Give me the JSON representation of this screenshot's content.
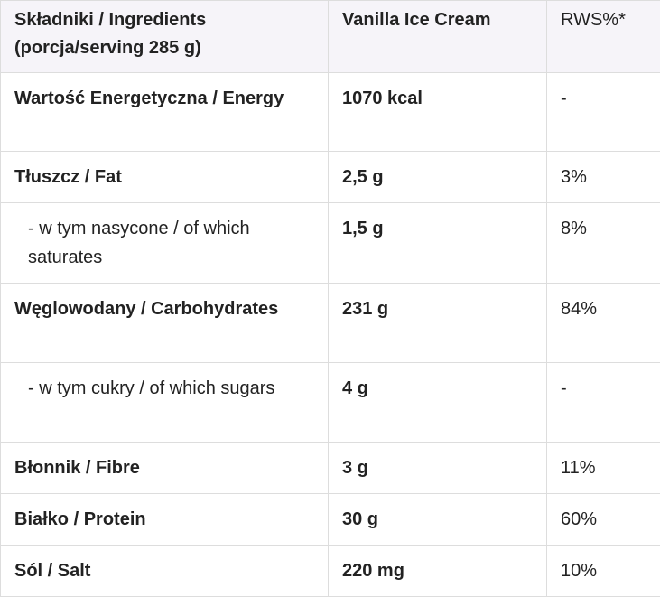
{
  "table": {
    "header": [
      [
        "Składniki / Ingredients",
        "(porcja/serving 285 g)"
      ],
      "Vanilla Ice Cream",
      "RWS%*"
    ],
    "rows": [
      [
        "Wartość Energetyczna / Energy",
        "1070 kcal",
        "-"
      ],
      [
        "Tłuszcz / Fat",
        "2,5 g",
        "3%"
      ],
      [
        "- w tym nasycone / of which saturates",
        "1,5 g",
        "8%"
      ],
      [
        "Węglowodany / Carbohydrates",
        "231 g",
        "84%"
      ],
      [
        "- w tym cukry / of which sugars",
        "4 g",
        "-"
      ],
      [
        "Błonnik / Fibre",
        "3 g",
        "11%"
      ],
      [
        "Białko / Protein",
        "30 g",
        "60%"
      ],
      [
        "Sól / Salt",
        "220 mg",
        "10%"
      ]
    ]
  }
}
